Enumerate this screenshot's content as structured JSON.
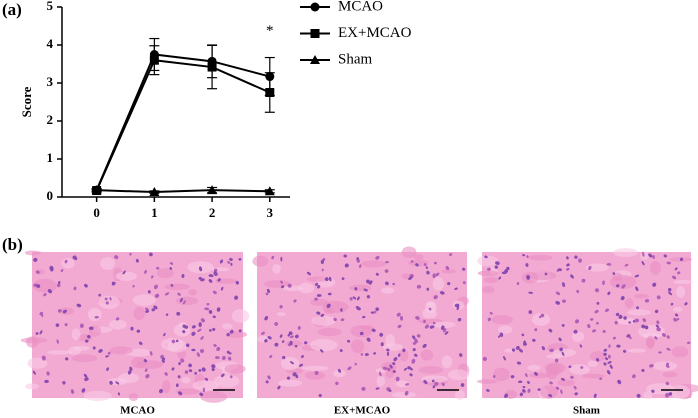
{
  "panel_a": "(a)",
  "panel_b": "(b)",
  "chart_data": {
    "type": "line",
    "ylabel": "Score",
    "x": [
      0,
      1,
      2,
      3
    ],
    "xlim": [
      -0.6,
      3.35
    ],
    "xticks": [
      0,
      1,
      2,
      3
    ],
    "ylim": [
      0,
      5
    ],
    "yticks": [
      0,
      1,
      2,
      3,
      4,
      5
    ],
    "series": [
      {
        "name": "MCAO",
        "color": "#000000",
        "marker": "circle",
        "values": [
          0.18,
          3.75,
          3.57,
          3.17
        ],
        "errors": [
          0.04,
          0.42,
          0.43,
          0.5
        ]
      },
      {
        "name": "EX+MCAO",
        "color": "#000000",
        "marker": "square",
        "values": [
          0.17,
          3.6,
          3.42,
          2.75
        ],
        "errors": [
          0.04,
          0.38,
          0.57,
          0.52
        ]
      },
      {
        "name": "Sham",
        "color": "#000000",
        "marker": "triangle",
        "values": [
          0.18,
          0.13,
          0.18,
          0.15
        ],
        "errors": [
          0.02,
          0.03,
          0.07,
          0.04
        ]
      }
    ],
    "annotation": {
      "text": "*",
      "x": 3,
      "y": 4.35
    }
  },
  "images": [
    {
      "caption": "MCAO"
    },
    {
      "caption": "EX+MCAO"
    },
    {
      "caption": "Sham"
    }
  ]
}
